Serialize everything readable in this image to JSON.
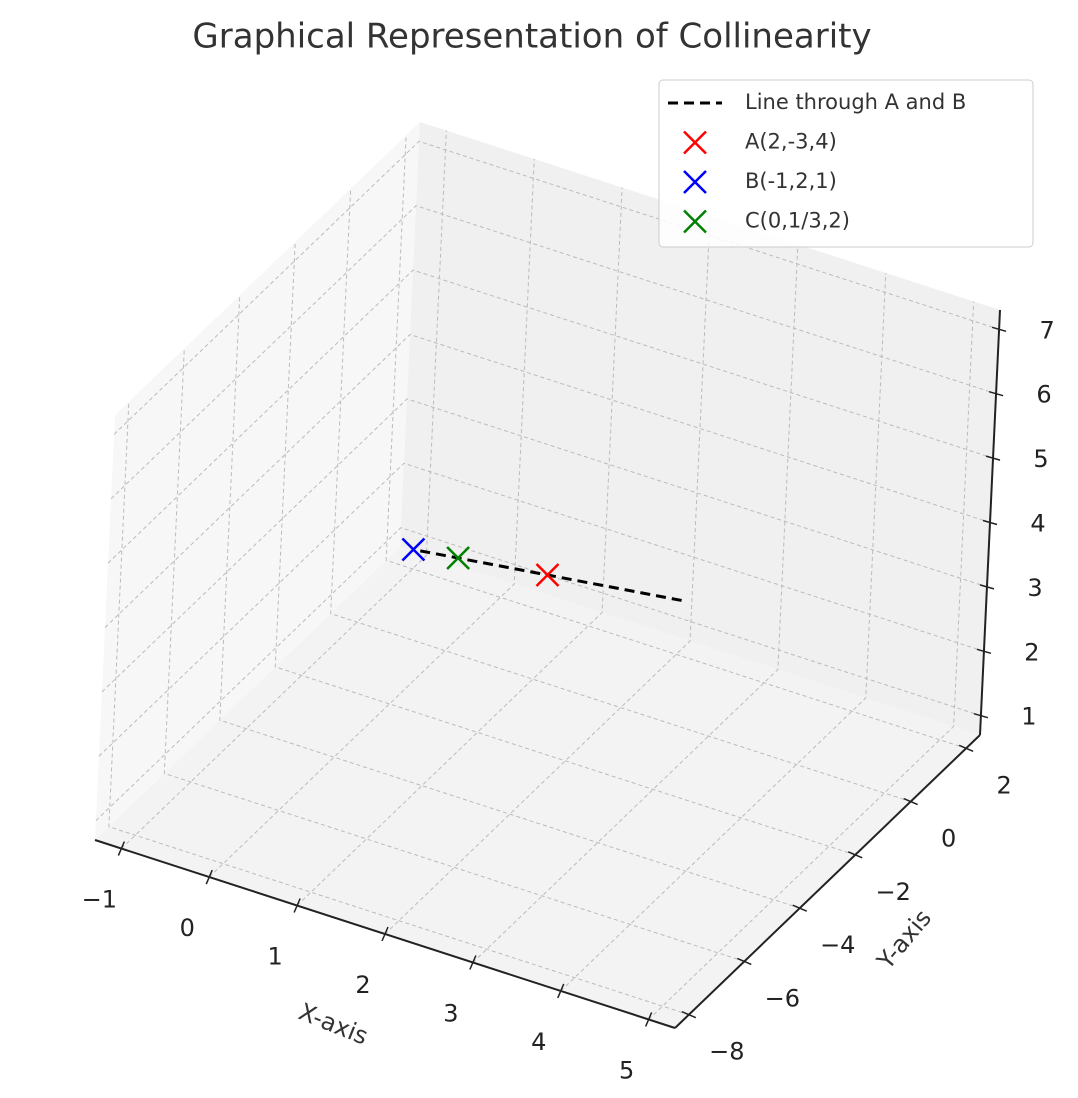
{
  "chart_data": {
    "type": "scatter3d",
    "title": "Graphical Representation of Collinearity",
    "xlabel": "X-axis",
    "ylabel": "Y-axis",
    "xlim": [
      -1.3,
      5.3
    ],
    "ylim": [
      -8.5,
      2.5
    ],
    "zlim": [
      0.7,
      7.3
    ],
    "xticks": [
      {
        "value": -1,
        "label": "−1"
      },
      0,
      1,
      2,
      3,
      4,
      5
    ],
    "yticks": [
      {
        "value": -8,
        "label": "−8"
      },
      {
        "value": -6,
        "label": "−6"
      },
      {
        "value": -4,
        "label": "−4"
      },
      {
        "value": -2,
        "label": "−2"
      },
      0,
      2
    ],
    "zticks": [
      1,
      2,
      3,
      4,
      5,
      6,
      7
    ],
    "grid": true,
    "legend": "upper right",
    "series": [
      {
        "name": "Line through A and B",
        "color": "#000000",
        "style": "dashed",
        "x": [
          5,
          -1
        ],
        "y": [
          -8,
          2
        ],
        "z": [
          7,
          1
        ]
      },
      {
        "name": "A(2,-3,4)",
        "color": "#ff0000",
        "marker": "x",
        "x": [
          2
        ],
        "y": [
          -3
        ],
        "z": [
          4
        ]
      },
      {
        "name": "B(-1,2,1)",
        "color": "#0000ff",
        "marker": "x",
        "x": [
          -1
        ],
        "y": [
          2
        ],
        "z": [
          1
        ]
      },
      {
        "name": "C(0,1/3,2)",
        "color": "#008000",
        "marker": "x",
        "x": [
          0
        ],
        "y": [
          0.3333
        ],
        "z": [
          2
        ]
      }
    ]
  }
}
